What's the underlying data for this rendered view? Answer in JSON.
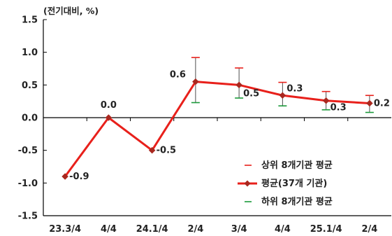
{
  "chart_data": {
    "type": "line",
    "unit_label": "(전기대비, %)",
    "categories": [
      "23.3/4",
      "4/4",
      "24.1/4",
      "2/4",
      "3/4",
      "4/4",
      "25.1/4",
      "2/4"
    ],
    "ylim": [
      -1.5,
      1.5
    ],
    "yticks": [
      "1.5",
      "1.0",
      "0.5",
      "0.0",
      "-0.5",
      "-1.0",
      "-1.5"
    ],
    "ytick_values": [
      1.5,
      1.0,
      0.5,
      0.0,
      -0.5,
      -1.0,
      -1.5
    ],
    "series": [
      {
        "name": "평균(37개 기관)",
        "values": [
          -0.9,
          0.0,
          -0.5,
          0.55,
          0.5,
          0.34,
          0.26,
          0.22
        ],
        "labels": [
          "-0.9",
          "0.0",
          "-0.5",
          "0.6",
          "0.5",
          "0.3",
          "0.3",
          "0.2"
        ],
        "color": "#e8201b"
      },
      {
        "name": "상위 8개기관 평균",
        "values": [
          null,
          null,
          null,
          0.92,
          0.76,
          0.54,
          0.4,
          0.34
        ],
        "color": "#e8201b"
      },
      {
        "name": "하위 8개기관 평균",
        "values": [
          null,
          null,
          null,
          0.23,
          0.3,
          0.18,
          0.12,
          0.08
        ],
        "color": "#1a9a3a"
      }
    ],
    "grid": false,
    "legend_position": "bottom-right",
    "colors": {
      "average": "#e8201b",
      "marker": "#a9281f",
      "range": "#4d4d4d",
      "upper": "#e8201b",
      "lower": "#1a9a3a",
      "axis": "#000000"
    }
  }
}
